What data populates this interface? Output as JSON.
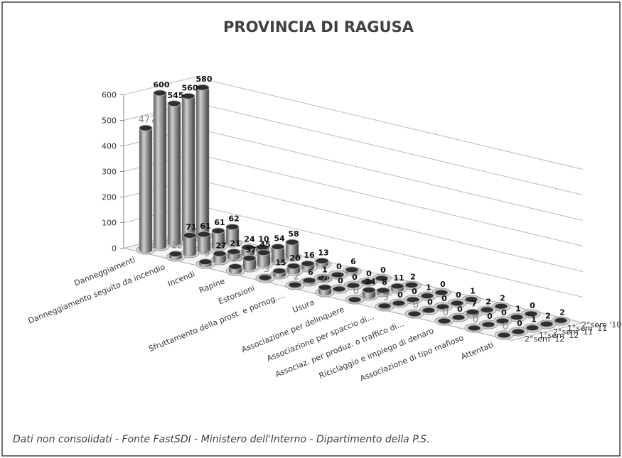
{
  "chart_data": {
    "type": "bar3d",
    "title": "PROVINCIA DI RAGUSA",
    "footnote": "Dati non consolidati - Fonte FastSDI - Ministero dell'Interno - Dipartimento della P.S.",
    "categories": [
      "Danneggiamenti",
      "Danneggiamento seguito da incendio",
      "Incendi",
      "Rapine",
      "Estorsioni",
      "Sfruttamento della prost. e pornog....",
      "Usura",
      "Associazione per delinquere",
      "Associazione per spaccio di...",
      "Associaz. per produz. o traffico di...",
      "Riciclaggio e impiego di denaro",
      "Associazione di tipo mafioso",
      "Attentati"
    ],
    "series": [
      {
        "name": "2°sem '10",
        "color": "#8c8c8c",
        "values": [
          580,
          62,
          10,
          58,
          13,
          6,
          0,
          2,
          0,
          1,
          2,
          0,
          2
        ]
      },
      {
        "name": "1°sem '11",
        "color": "#8c8c8c",
        "values": [
          560,
          61,
          24,
          54,
          16,
          0,
          0,
          11,
          1,
          0,
          2,
          1,
          2
        ]
      },
      {
        "name": "2°sem '11",
        "color": "#8c8c8c",
        "values": [
          545,
          61,
          21,
          45,
          20,
          1,
          0,
          8,
          0,
          0,
          7,
          0,
          1
        ]
      },
      {
        "name": "1°sem '12",
        "color": "#8c8c8c",
        "values": [
          600,
          71,
          27,
          37,
          15,
          6,
          0,
          24,
          0,
          0,
          0,
          0,
          0
        ]
      },
      {
        "name": "2°sem '12",
        "color": "#8c8c8c",
        "values": [
          477,
          12,
          9,
          18,
          3,
          2,
          20,
          0,
          3,
          0,
          0,
          0,
          0
        ]
      }
    ],
    "ylim": [
      0,
      600
    ],
    "yticks": [
      0,
      100,
      200,
      300,
      400,
      500,
      600
    ],
    "grid": true
  }
}
